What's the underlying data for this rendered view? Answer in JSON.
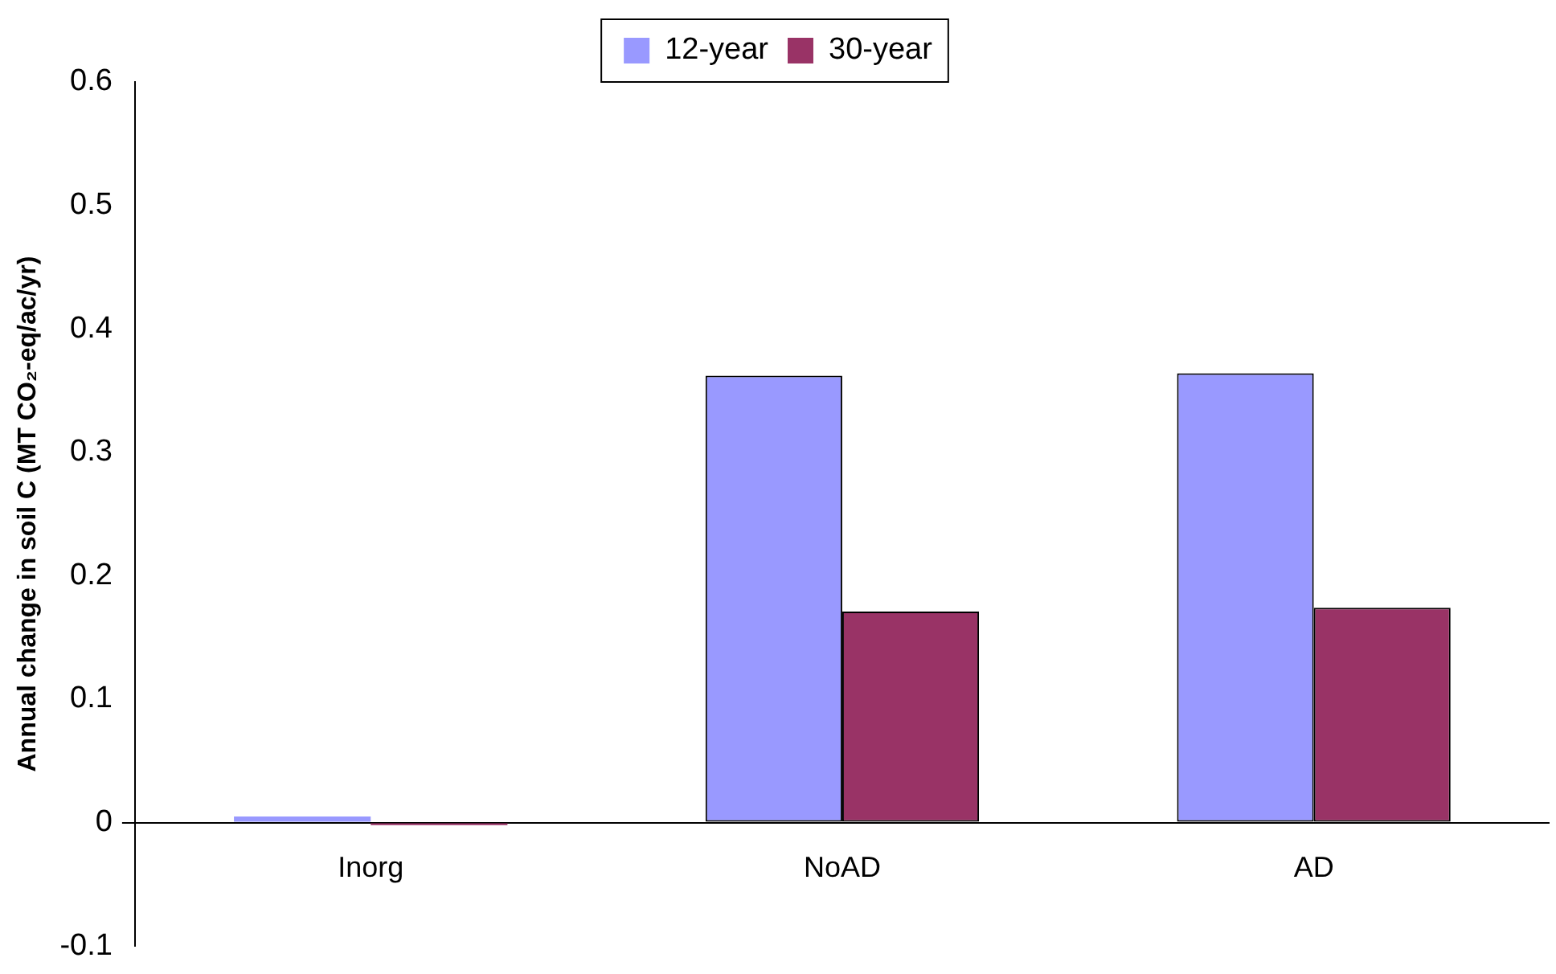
{
  "chart_data": {
    "type": "bar",
    "ylabel": "Annual change in soil C (MT CO₂-eq/ac/yr)",
    "categories": [
      "Inorg",
      "NoAD",
      "AD"
    ],
    "series": [
      {
        "name": "12-year",
        "color": "#9999ff",
        "values": [
          0.005,
          0.362,
          0.364
        ]
      },
      {
        "name": "30-year",
        "color": "#993366",
        "values": [
          -0.002,
          0.171,
          0.174
        ]
      }
    ],
    "ylim": [
      -0.1,
      0.6
    ],
    "yticks": [
      -0.1,
      0,
      0.1,
      0.2,
      0.3,
      0.4,
      0.5,
      0.6
    ],
    "grid": false,
    "legend": "top"
  }
}
